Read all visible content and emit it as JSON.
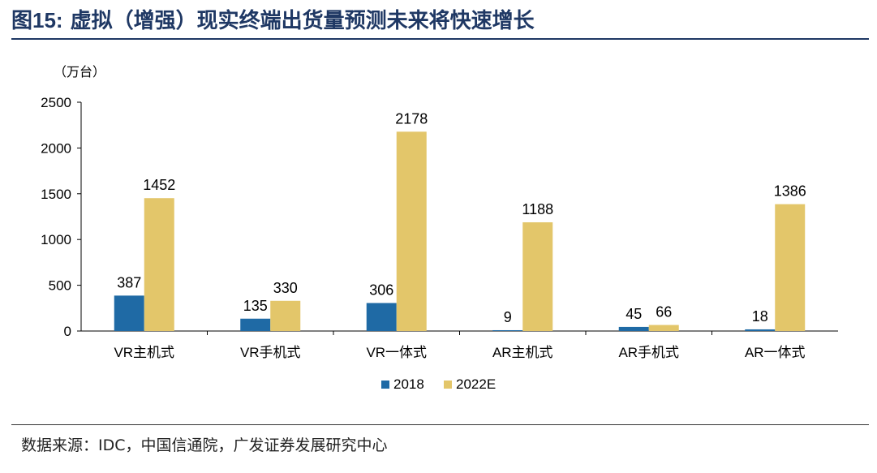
{
  "figure": {
    "label": "图15:",
    "title": "虚拟（增强）现实终端出货量预测未来将快速增长",
    "source": "数据来源：IDC，中国信通院，广发证券发展研究中心"
  },
  "chart_data": {
    "type": "bar",
    "unit_label": "（万台）",
    "categories": [
      "VR主机式",
      "VR手机式",
      "VR一体式",
      "AR主机式",
      "AR手机式",
      "AR一体式"
    ],
    "series": [
      {
        "name": "2018",
        "color": "#1F6AA5",
        "values": [
          387,
          135,
          306,
          9,
          45,
          18
        ]
      },
      {
        "name": "2022E",
        "color": "#E3C66A",
        "values": [
          1452,
          330,
          2178,
          1188,
          66,
          1386
        ]
      }
    ],
    "ylim": [
      0,
      2500
    ],
    "yticks": [
      0,
      500,
      1000,
      1500,
      2000,
      2500
    ],
    "grid": false,
    "legend_position": "bottom-center"
  }
}
